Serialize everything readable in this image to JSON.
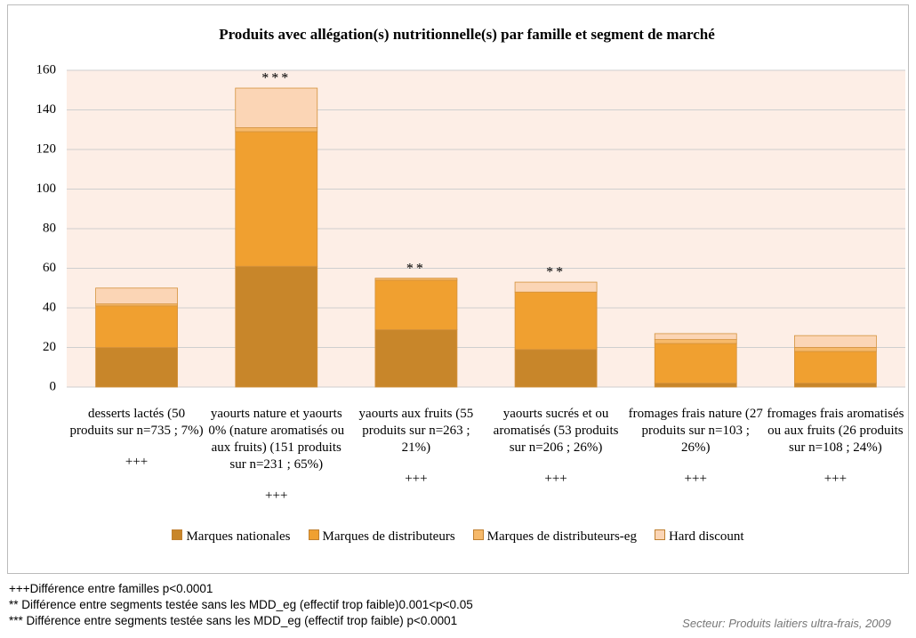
{
  "chart_data": {
    "type": "stacked_bar",
    "title": "Produits avec allégation(s) nutritionnelle(s) par famille et segment de marché",
    "categories": [
      "desserts lactés (50 produits sur n=735 ; 7%)",
      "yaourts nature et yaourts 0% (nature aromatisés ou aux fruits) (151 produits sur n=231 ; 65%)",
      "yaourts aux fruits (55 produits sur n=263 ; 21%)",
      "yaourts sucrés et ou aromatisés (53 produits sur n=206 ; 26%)",
      "fromages frais nature (27 produits sur n=103 ; 26%)",
      "fromages frais aromatisés ou aux fruits (26 produits sur n=108 ; 24%)"
    ],
    "segment_annotations": [
      null,
      "***",
      "**",
      "**",
      null,
      null
    ],
    "family_annotations": [
      "+++",
      "+++",
      "+++",
      "+++",
      "+++",
      "+++"
    ],
    "series": [
      {
        "name": "Marques nationales",
        "color": "#c8862a",
        "values": [
          20,
          61,
          29,
          19,
          2,
          2
        ]
      },
      {
        "name": "Marques de distributeurs",
        "color": "#f0a030",
        "values": [
          21,
          68,
          25,
          29,
          20,
          16
        ]
      },
      {
        "name": "Marques de distributeurs-eg",
        "color": "#f6b96a",
        "values": [
          1,
          2,
          1,
          0,
          2,
          2
        ]
      },
      {
        "name": "Hard discount",
        "color": "#fbd5b5",
        "values": [
          8,
          20,
          0,
          5,
          3,
          6
        ]
      }
    ],
    "ylim": [
      0,
      160
    ],
    "yticks": [
      0,
      20,
      40,
      60,
      80,
      100,
      120,
      140,
      160
    ],
    "grid": true,
    "legend": "bottom",
    "notes": [
      "+++Différence entre familles p<0.0001",
      "** Différence entre segments testée sans les MDD_eg (effectif trop faible)0.001<p<0.05",
      "*** Différence entre segments testée sans les MDD_eg (effectif trop faible) p<0.0001"
    ],
    "source": "Secteur: Produits laitiers ultra-frais, 2009"
  }
}
